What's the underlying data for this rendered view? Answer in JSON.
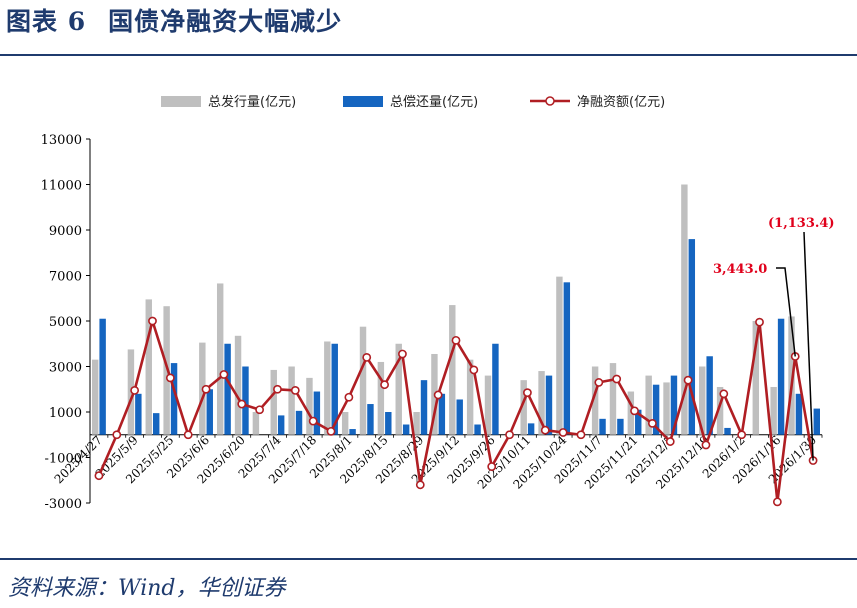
{
  "header": {
    "figure_label": "图表 6",
    "title": "国债净融资大幅减少"
  },
  "source": "资料来源：Wind，华创证券",
  "colors": {
    "issuance": "#bfbfbf",
    "repayment": "#1565c0",
    "net": "#b01e23",
    "annotation": "#e0001b",
    "header": "#1f3b6e"
  },
  "chart_data": {
    "type": "bar",
    "ylim": [
      -3000,
      13000
    ],
    "yticks": [
      -3000,
      -1000,
      1000,
      3000,
      5000,
      7000,
      9000,
      11000,
      13000
    ],
    "grid": false,
    "legend_position": "top",
    "x_tick_labels": [
      "2025/4/27",
      "2025/5/9",
      "2025/5/25",
      "2025/6/6",
      "2025/6/20",
      "2025/7/4",
      "2025/7/18",
      "2025/8/1",
      "2025/8/15",
      "2025/8/29",
      "2025/9/12",
      "2025/9/26",
      "2025/10/11",
      "2025/10/24",
      "2025/11/7",
      "2025/11/21",
      "2025/12/5",
      "2025/12/19",
      "2026/1/2",
      "2026/1/16",
      "2026/1/30"
    ],
    "series": [
      {
        "name": "总发行量(亿元)",
        "kind": "bar",
        "values": [
          3300,
          0,
          3750,
          5950,
          5650,
          0,
          4050,
          6650,
          4350,
          1000,
          2850,
          3000,
          2500,
          4100,
          1000,
          4750,
          3200,
          4000,
          1000,
          3550,
          5700,
          3300,
          2600,
          0,
          2400,
          2800,
          6950,
          0,
          3000,
          3150,
          1900,
          2600,
          2300,
          11000,
          3000,
          2100,
          0,
          5000,
          2100,
          5200,
          0
        ]
      },
      {
        "name": "总偿还量(亿元)",
        "kind": "bar",
        "values": [
          5100,
          0,
          1800,
          950,
          3150,
          0,
          2000,
          4000,
          3000,
          0,
          850,
          1050,
          1900,
          4000,
          250,
          1350,
          1000,
          450,
          2400,
          1800,
          1550,
          450,
          4000,
          0,
          500,
          2600,
          6700,
          0,
          700,
          700,
          1100,
          2200,
          2600,
          8600,
          3450,
          300,
          0,
          0,
          5100,
          1800,
          1150
        ]
      },
      {
        "name": "净融资额(亿元)",
        "kind": "line",
        "values": [
          -1800,
          0,
          1950,
          5000,
          2500,
          0,
          2000,
          2650,
          1350,
          1100,
          2000,
          1950,
          600,
          150,
          1650,
          3400,
          2200,
          3550,
          -2200,
          1750,
          4150,
          2850,
          -1400,
          0,
          1850,
          200,
          100,
          0,
          2300,
          2450,
          1050,
          500,
          -300,
          2400,
          -450,
          1800,
          0,
          4950,
          -2950,
          3443.0,
          -1133.4
        ]
      }
    ],
    "annotations": [
      {
        "text": "3,443.0"
      },
      {
        "text": "(1,133.4)"
      }
    ]
  }
}
